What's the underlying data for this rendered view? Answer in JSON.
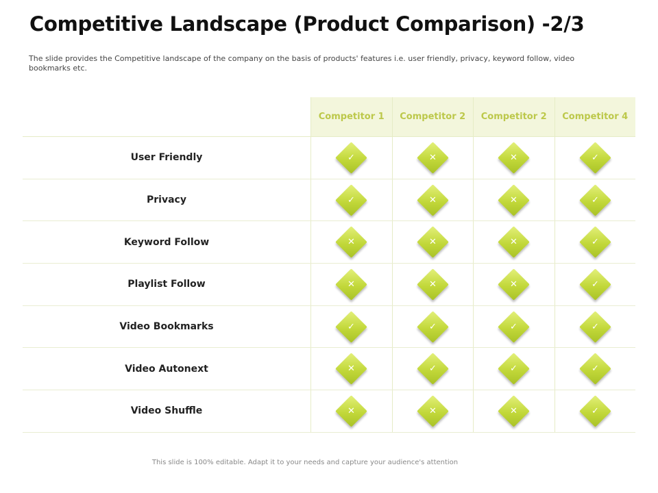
{
  "title": "Competitive Landscape (Product Comparison) -2/3",
  "subtitle": "The slide provides the Competitive landscape of the company on the basis of products' features i.e. user friendly, privacy, keyword follow, video bookmarks etc.",
  "table": {
    "competitors": [
      "Competitor 1",
      "Competitor 2",
      "Competitor 2",
      "Competitor 4"
    ],
    "rows": [
      {
        "feature": "User Friendly",
        "marks": [
          "✓",
          "✕",
          "✕",
          "✓"
        ]
      },
      {
        "feature": "Privacy",
        "marks": [
          "✓",
          "✕",
          "✕",
          "✓"
        ]
      },
      {
        "feature": "Keyword Follow",
        "marks": [
          "✕",
          "✕",
          "✕",
          "✓"
        ]
      },
      {
        "feature": "Playlist Follow",
        "marks": [
          "✕",
          "✕",
          "✕",
          "✓"
        ]
      },
      {
        "feature": "Video Bookmarks",
        "marks": [
          "✓",
          "✓",
          "✓",
          "✓"
        ]
      },
      {
        "feature": "Video Autonext",
        "marks": [
          "✕",
          "✓",
          "✓",
          "✓"
        ]
      },
      {
        "feature": "Video Shuffle",
        "marks": [
          "✕",
          "✕",
          "✕",
          "✓"
        ]
      }
    ]
  },
  "footer": "This slide is 100% editable. Adapt it to your needs and capture your audience's attention",
  "colors": {
    "accent": "#c2d83a",
    "header_bg": "#f3f6dc",
    "header_text": "#bcc84a"
  }
}
